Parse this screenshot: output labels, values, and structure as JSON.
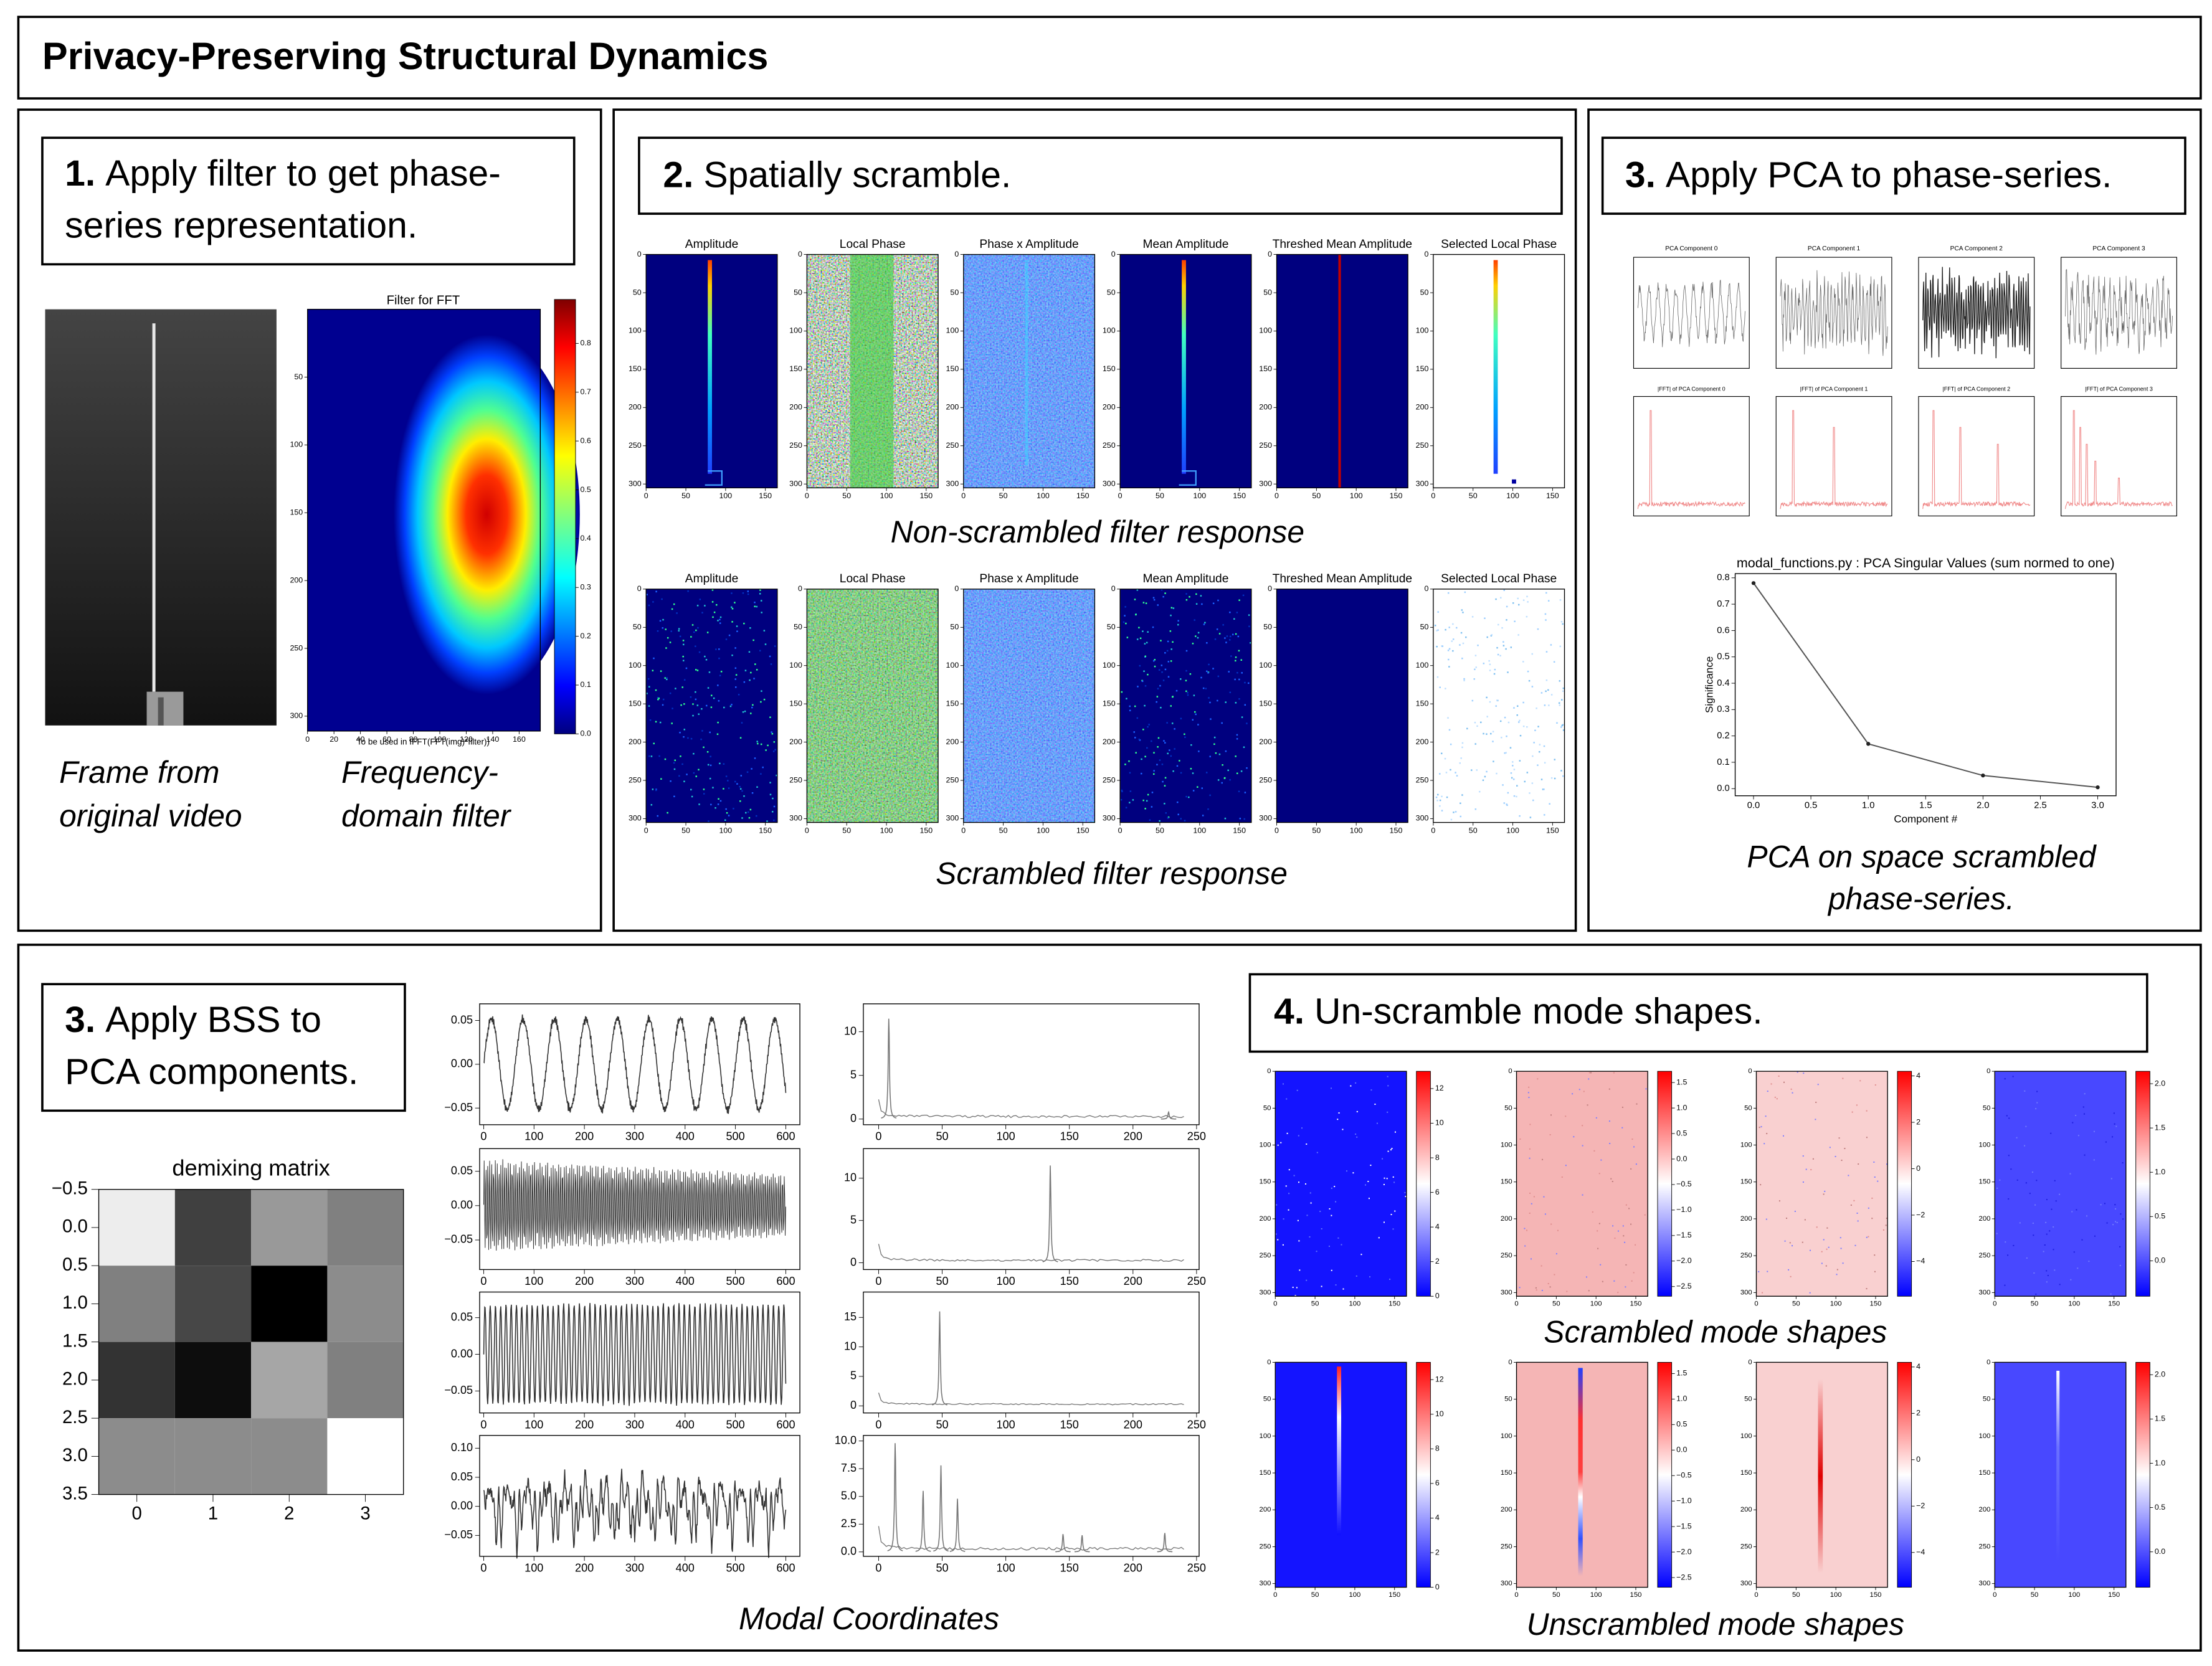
{
  "header": {
    "title": "Privacy-Preserving Structural Dynamics"
  },
  "steps": [
    {
      "number": "1.",
      "lines": [
        "Apply filter to get phase-",
        "series representation."
      ]
    },
    {
      "number": "2.",
      "lines": [
        "Spatially scramble."
      ]
    },
    {
      "number": "3.",
      "lines": [
        "Apply PCA to phase-series."
      ]
    },
    {
      "number": "3.",
      "lines": [
        "Apply BSS to",
        "PCA components."
      ]
    },
    {
      "number": "4.",
      "lines": [
        "Un-scramble mode shapes."
      ]
    }
  ],
  "image_axes": {
    "xlim": [
      0,
      165
    ],
    "ylim": [
      0,
      305
    ],
    "xticks": [
      0,
      50,
      100,
      150
    ],
    "yticks": [
      0,
      50,
      100,
      150,
      200,
      250,
      300
    ]
  },
  "panel1": {
    "filter_title": "Filter for FFT",
    "filter_xlabel": "To be used in IFFT(FFT(img)*filter))",
    "filter_xlim": [
      0,
      176
    ],
    "filter_xticks": [
      0,
      20,
      40,
      60,
      80,
      100,
      120,
      140,
      160
    ],
    "filter_ylim": [
      0,
      311
    ],
    "filter_yticks": [
      50,
      100,
      150,
      200,
      250,
      300
    ],
    "colorbar_lim": [
      0,
      0.89
    ],
    "colorbar_ticks": [
      {
        "value": 0,
        "label": "0.0"
      },
      0.1,
      0.2,
      0.3,
      0.4,
      0.5,
      0.6,
      0.7,
      0.8
    ],
    "captions": [
      [
        "Frame from",
        "original video"
      ],
      [
        "Frequency-",
        "domain filter"
      ]
    ]
  },
  "panel2": {
    "subplot_titles": [
      "Amplitude",
      "Local Phase",
      "Phase x Amplitude",
      "Mean Amplitude",
      "Threshed Mean Amplitude",
      "Selected Local Phase"
    ],
    "captions": [
      "Non-scrambled filter response",
      "Scrambled filter response"
    ]
  },
  "panel3": {
    "component_titles": [
      "PCA Component 0",
      "PCA Component 1",
      "PCA Component 2",
      "PCA Component 3"
    ],
    "fft_titles": [
      "|FFT| of PCA Component 0",
      "|FFT| of PCA Component 1",
      "|FFT| of PCA Component 2",
      "|FFT| of PCA Component 3"
    ],
    "chart": {
      "type": "line",
      "title": "modal_functions.py : PCA Singular Values (sum normed to one)",
      "xlabel": "Component #",
      "ylabel": "Significance",
      "x": [
        0,
        1,
        2,
        3
      ],
      "values": [
        0.78,
        0.17,
        0.05,
        0.005
      ],
      "color": "#555555",
      "xlim": [
        -0.16,
        3.16
      ],
      "xticks": [
        {
          "value": 0,
          "label": "0.0"
        },
        0.5,
        {
          "value": 1,
          "label": "1.0"
        },
        1.5,
        {
          "value": 2,
          "label": "2.0"
        },
        2.5,
        {
          "value": 3,
          "label": "3.0"
        }
      ],
      "ylim": [
        -0.027,
        0.816
      ],
      "yticks": [
        {
          "value": 0,
          "label": "0.0"
        },
        0.1,
        0.2,
        0.3,
        0.4,
        0.5,
        0.6,
        0.7,
        0.8
      ]
    },
    "caption": [
      "PCA on space scrambled",
      "phase-series."
    ]
  },
  "panel4": {
    "demixing": {
      "type": "heatmap",
      "title": "demixing matrix",
      "values": [
        [
          0.93,
          0.25,
          0.6,
          0.5
        ],
        [
          0.5,
          0.28,
          0.0,
          0.55
        ],
        [
          0.2,
          0.05,
          0.65,
          0.5
        ],
        [
          0.55,
          0.55,
          0.55,
          1.0
        ]
      ],
      "xlim": [
        -0.5,
        3.5
      ],
      "xticks": [
        0,
        1,
        2,
        3
      ],
      "ylim": [
        -0.5,
        3.5
      ],
      "yticks": [
        {
          "value": -0.5,
          "label": "−0.5"
        },
        {
          "value": 0,
          "label": "0.0"
        },
        0.5,
        {
          "value": 1,
          "label": "1.0"
        },
        1.5,
        {
          "value": 2,
          "label": "2.0"
        },
        2.5,
        {
          "value": 3,
          "label": "3.0"
        },
        3.5
      ]
    },
    "modal": {
      "caption": "Modal Coordinates",
      "time_xlim": [
        -8,
        628
      ],
      "time_xticks": [
        0,
        100,
        200,
        300,
        400,
        500,
        600
      ],
      "freq_xlim": [
        -12,
        252
      ],
      "freq_xticks": [
        0,
        50,
        100,
        150,
        200,
        250
      ],
      "rows": [
        {
          "time_ylim": [
            -0.069,
            0.069
          ],
          "time_yticks": [
            0.05,
            {
              "value": 0,
              "label": "0.00"
            },
            {
              "value": -0.05,
              "label": "−0.05"
            }
          ],
          "freq_ylim": [
            -0.65,
            13.2
          ],
          "freq_yticks": [
            0,
            5,
            10
          ],
          "peaks": [
            [
              8,
              11.5
            ],
            [
              228,
              0.8
            ]
          ]
        },
        {
          "time_ylim": [
            -0.093,
            0.083
          ],
          "time_yticks": [
            0.05,
            {
              "value": 0,
              "label": "0.00"
            },
            {
              "value": -0.05,
              "label": "−0.05"
            }
          ],
          "freq_ylim": [
            -0.8,
            13.5
          ],
          "freq_yticks": [
            0,
            5,
            10
          ],
          "peaks": [
            [
              135,
              11.5
            ]
          ]
        },
        {
          "time_ylim": [
            -0.08,
            0.085
          ],
          "time_yticks": [
            0.05,
            {
              "value": 0,
              "label": "0.00"
            },
            {
              "value": -0.05,
              "label": "−0.05"
            }
          ],
          "freq_ylim": [
            -1.2,
            19.3
          ],
          "freq_yticks": [
            0,
            5,
            10,
            15
          ],
          "peaks": [
            [
              48,
              16
            ]
          ]
        },
        {
          "time_ylim": [
            -0.086,
            0.122
          ],
          "time_yticks": [
            {
              "value": 0.1,
              "label": "0.10"
            },
            0.05,
            {
              "value": 0,
              "label": "0.00"
            },
            {
              "value": -0.05,
              "label": "−0.05"
            }
          ],
          "freq_ylim": [
            -0.4,
            10.5
          ],
          "freq_yticks": [
            {
              "value": 0,
              "label": "0.0"
            },
            2.5,
            {
              "value": 5,
              "label": "5.0"
            },
            7.5,
            {
              "value": 10,
              "label": "10.0"
            }
          ],
          "peaks": [
            [
              13,
              9.8
            ],
            [
              35,
              5.5
            ],
            [
              49,
              7.8
            ],
            [
              62,
              4.8
            ],
            [
              145,
              1.6
            ],
            [
              160,
              1.5
            ],
            [
              225,
              1.7
            ]
          ]
        }
      ]
    },
    "modes": {
      "captions": [
        "Scrambled mode shapes",
        "Unscrambled mode shapes"
      ],
      "colorbars": [
        {
          "lim": [
            0,
            13
          ],
          "ticks": [
            0,
            2,
            4,
            6,
            8,
            10,
            12
          ]
        },
        {
          "lim": [
            -2.69,
            1.72
          ],
          "ticks": [
            1.5,
            {
              "value": 1,
              "label": "1.0"
            },
            0.5,
            {
              "value": 0,
              "label": "0.0"
            },
            {
              "value": -0.5,
              "label": "−0.5"
            },
            {
              "value": -1,
              "label": "−1.0"
            },
            {
              "value": -1.5,
              "label": "−1.5"
            },
            {
              "value": -2,
              "label": "−2.0"
            },
            {
              "value": -2.5,
              "label": "−2.5"
            }
          ]
        },
        {
          "lim": [
            -5.5,
            4.2
          ],
          "ticks": [
            4,
            2,
            0,
            {
              "value": -2,
              "label": "−2"
            },
            {
              "value": -4,
              "label": "−4"
            }
          ]
        },
        {
          "lim": [
            -0.4,
            2.14
          ],
          "ticks": [
            {
              "value": 2,
              "label": "2.0"
            },
            1.5,
            {
              "value": 1,
              "label": "1.0"
            },
            0.5,
            {
              "value": 0,
              "label": "0.0"
            }
          ]
        }
      ]
    }
  }
}
